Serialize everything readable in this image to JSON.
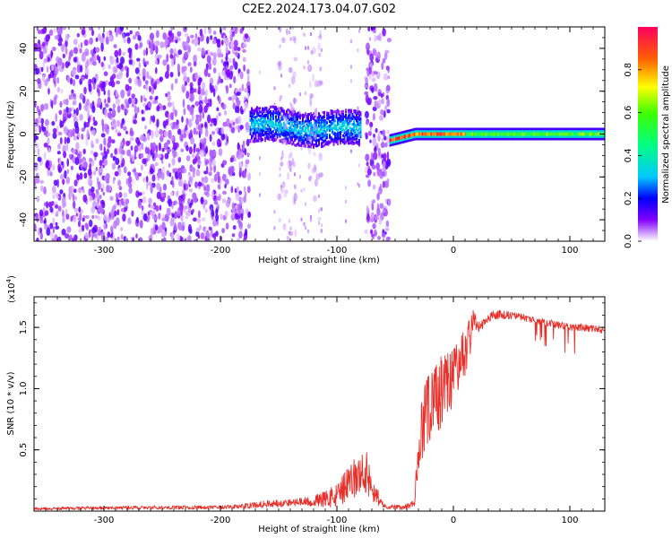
{
  "title": "C2E2.2024.173.04.07.G02",
  "chart_data": [
    {
      "type": "heatmap",
      "xlabel": "Height of straight line (km)",
      "ylabel": "Frequency (Hz)",
      "xlim": [
        -360,
        130
      ],
      "ylim": [
        -50,
        50
      ],
      "x_ticks": [
        -300,
        -200,
        -100,
        0,
        100
      ],
      "x_tick_labels": [
        "-300",
        "-200",
        "-100",
        "0",
        "100"
      ],
      "y_ticks": [
        -40,
        -20,
        0,
        20,
        40
      ],
      "y_tick_labels": [
        "-40",
        "-20",
        "0",
        "20",
        "40"
      ],
      "regions": [
        {
          "x": [
            -360,
            -175
          ],
          "kind": "noise",
          "amplitude": 0.1
        },
        {
          "x": [
            -175,
            -80
          ],
          "kind": "band",
          "center_hz": 4,
          "width_hz": 10,
          "amplitude": 0.3
        },
        {
          "x": [
            -150,
            -135
          ],
          "kind": "faint_noise",
          "amplitude": 0.03
        },
        {
          "x": [
            -125,
            -113
          ],
          "kind": "faint_noise",
          "amplitude": 0.03
        },
        {
          "x": [
            -75,
            -55
          ],
          "kind": "noise",
          "amplitude": 0.1
        },
        {
          "x": [
            -55,
            130
          ],
          "kind": "tone",
          "center_hz": 0,
          "width_hz": 5,
          "amplitude": 0.7
        }
      ],
      "colorbar": {
        "label": "Normalized spectral amplitude",
        "range": [
          0,
          1
        ],
        "ticks": [
          0.0,
          0.2,
          0.4,
          0.6,
          0.8
        ],
        "tick_labels": [
          "0.0",
          "0.2",
          "0.4",
          "0.6",
          "0.8"
        ]
      },
      "grid": false
    },
    {
      "type": "line",
      "xlabel": "Height of straight line (km)",
      "ylabel": "SNR (10 * v/v)",
      "y_multiplier": "(x10",
      "y_multiplier_exp": "4",
      "y_multiplier_close": ")",
      "xlim": [
        -360,
        130
      ],
      "ylim": [
        0,
        1.75
      ],
      "x_ticks": [
        -300,
        -200,
        -100,
        0,
        100
      ],
      "x_tick_labels": [
        "-300",
        "-200",
        "-100",
        "0",
        "100"
      ],
      "y_ticks": [
        0.5,
        1.0,
        1.5
      ],
      "y_tick_labels": [
        "0.5",
        "1.0",
        "1.5"
      ],
      "series": [
        {
          "color": "#e8302a",
          "x": [
            -360,
            -300,
            -250,
            -200,
            -180,
            -160,
            -140,
            -120,
            -100,
            -90,
            -80,
            -75,
            -70,
            -60,
            -45,
            -35,
            -32,
            -28,
            -25,
            -20,
            -15,
            -10,
            -5,
            0,
            5,
            10,
            15,
            18,
            20,
            25,
            30,
            35,
            40,
            50,
            60,
            70,
            80,
            90,
            100,
            110,
            120,
            130
          ],
          "y": [
            0.02,
            0.025,
            0.03,
            0.03,
            0.04,
            0.06,
            0.07,
            0.08,
            0.12,
            0.22,
            0.3,
            0.33,
            0.2,
            0.04,
            0.03,
            0.05,
            0.2,
            0.6,
            0.75,
            0.85,
            0.9,
            0.98,
            1.05,
            1.1,
            1.2,
            1.3,
            1.45,
            1.6,
            1.5,
            1.52,
            1.58,
            1.6,
            1.6,
            1.6,
            1.58,
            1.56,
            1.54,
            1.52,
            1.5,
            1.5,
            1.49,
            1.48
          ],
          "noise": [
            0.01,
            0.015,
            0.015,
            0.015,
            0.02,
            0.03,
            0.03,
            0.04,
            0.1,
            0.15,
            0.18,
            0.18,
            0.12,
            0.02,
            0.02,
            0.03,
            0.15,
            0.25,
            0.3,
            0.3,
            0.3,
            0.3,
            0.25,
            0.25,
            0.2,
            0.2,
            0.15,
            0.1,
            0.06,
            0.04,
            0.04,
            0.04,
            0.04,
            0.03,
            0.03,
            0.03,
            0.03,
            0.03,
            0.03,
            0.03,
            0.03,
            0.03
          ]
        }
      ],
      "grid": false
    }
  ]
}
